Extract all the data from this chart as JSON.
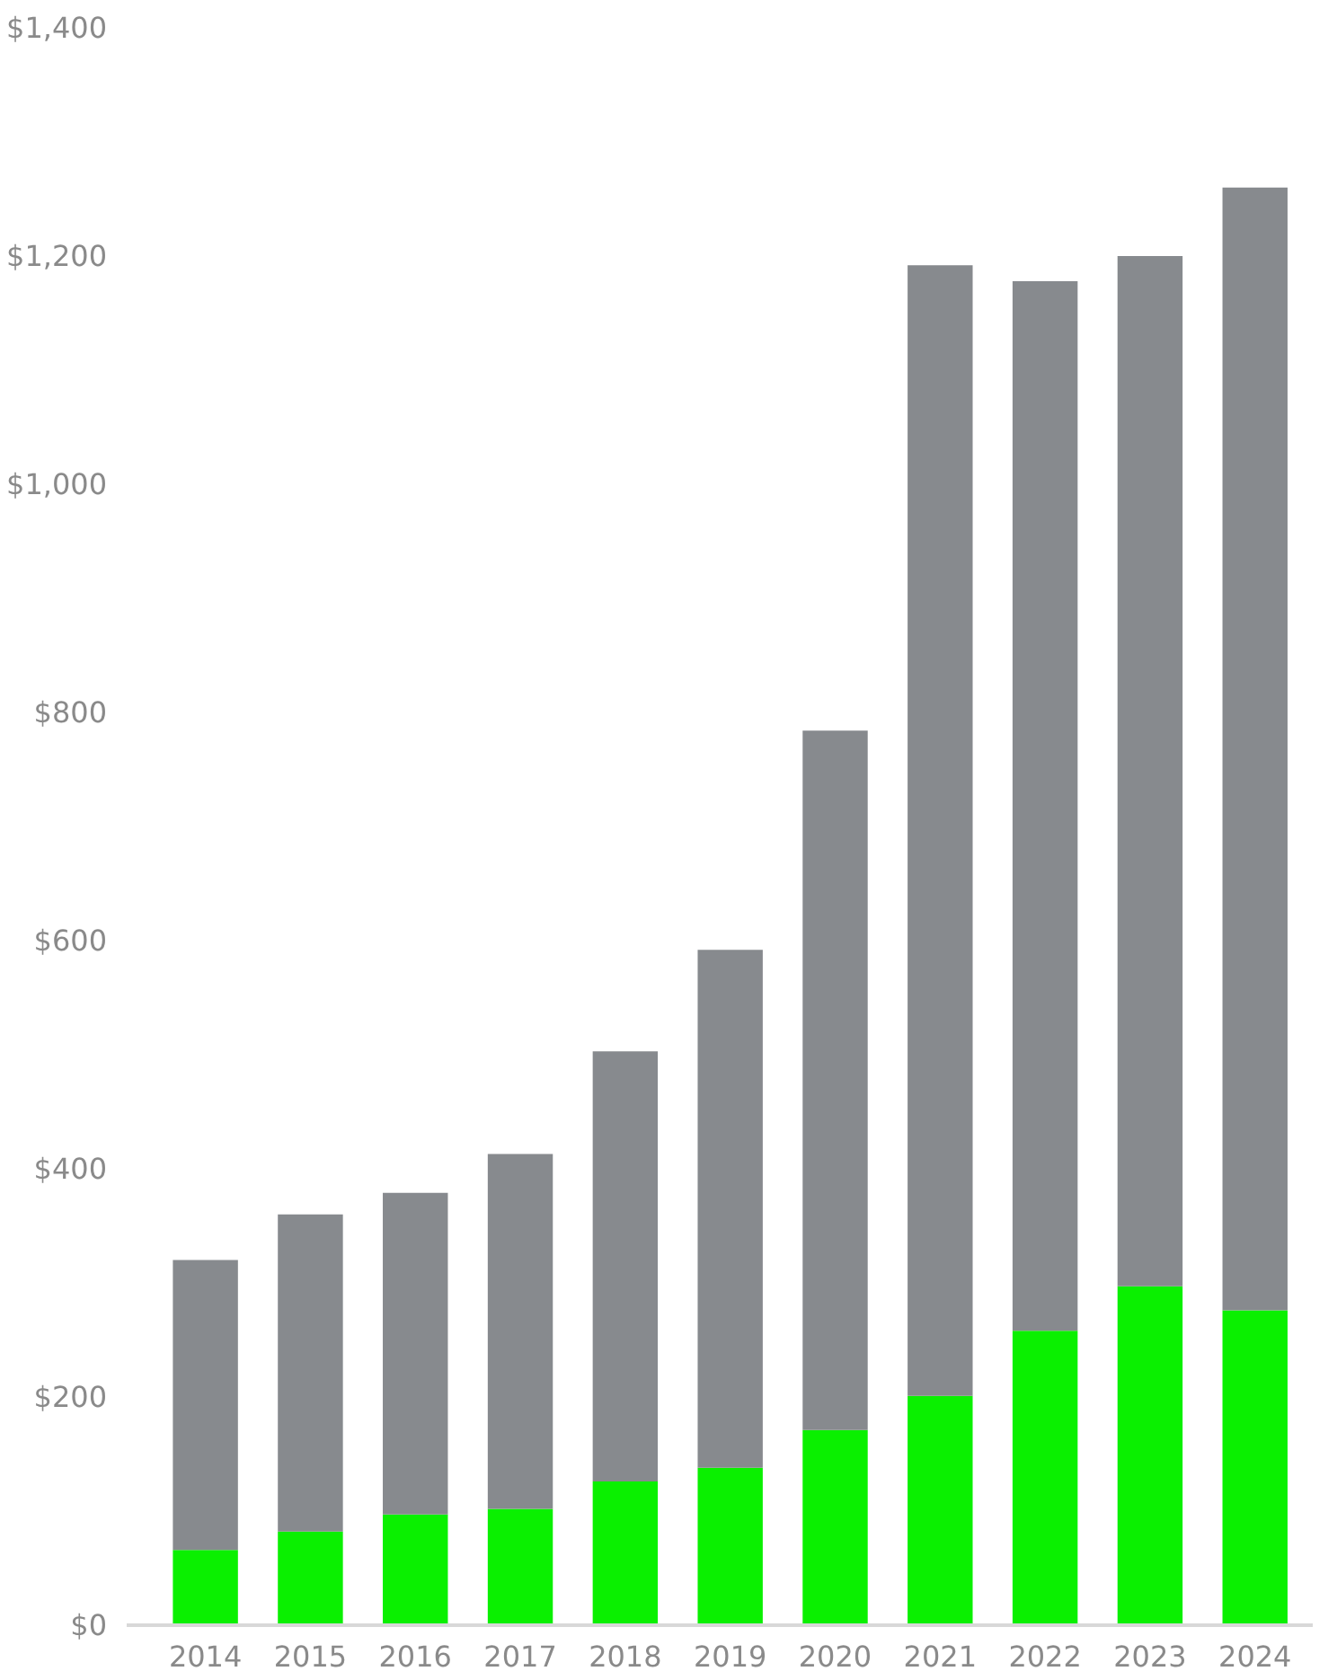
{
  "chart_data": {
    "type": "bar",
    "stacked": true,
    "categories": [
      "2014",
      "2015",
      "2016",
      "2017",
      "2018",
      "2019",
      "2020",
      "2021",
      "2022",
      "2023",
      "2024"
    ],
    "series": [
      {
        "color": "#0af000",
        "values": [
          66,
          82,
          97,
          102,
          126,
          138,
          171,
          201,
          258,
          297,
          276
        ]
      },
      {
        "color": "#878a8e",
        "values": [
          254,
          278,
          282,
          311,
          377,
          454,
          613,
          991,
          920,
          903,
          984
        ]
      }
    ],
    "ylim": [
      0,
      1400
    ],
    "yticks": [
      {
        "value": 0,
        "label": "$0"
      },
      {
        "value": 200,
        "label": "$200"
      },
      {
        "value": 400,
        "label": "$400"
      },
      {
        "value": 600,
        "label": "$600"
      },
      {
        "value": 800,
        "label": "$800"
      },
      {
        "value": 1000,
        "label": "$1,000"
      },
      {
        "value": 1200,
        "label": "$1,200"
      },
      {
        "value": 1400,
        "label": "$1,400"
      }
    ],
    "grid": false
  }
}
